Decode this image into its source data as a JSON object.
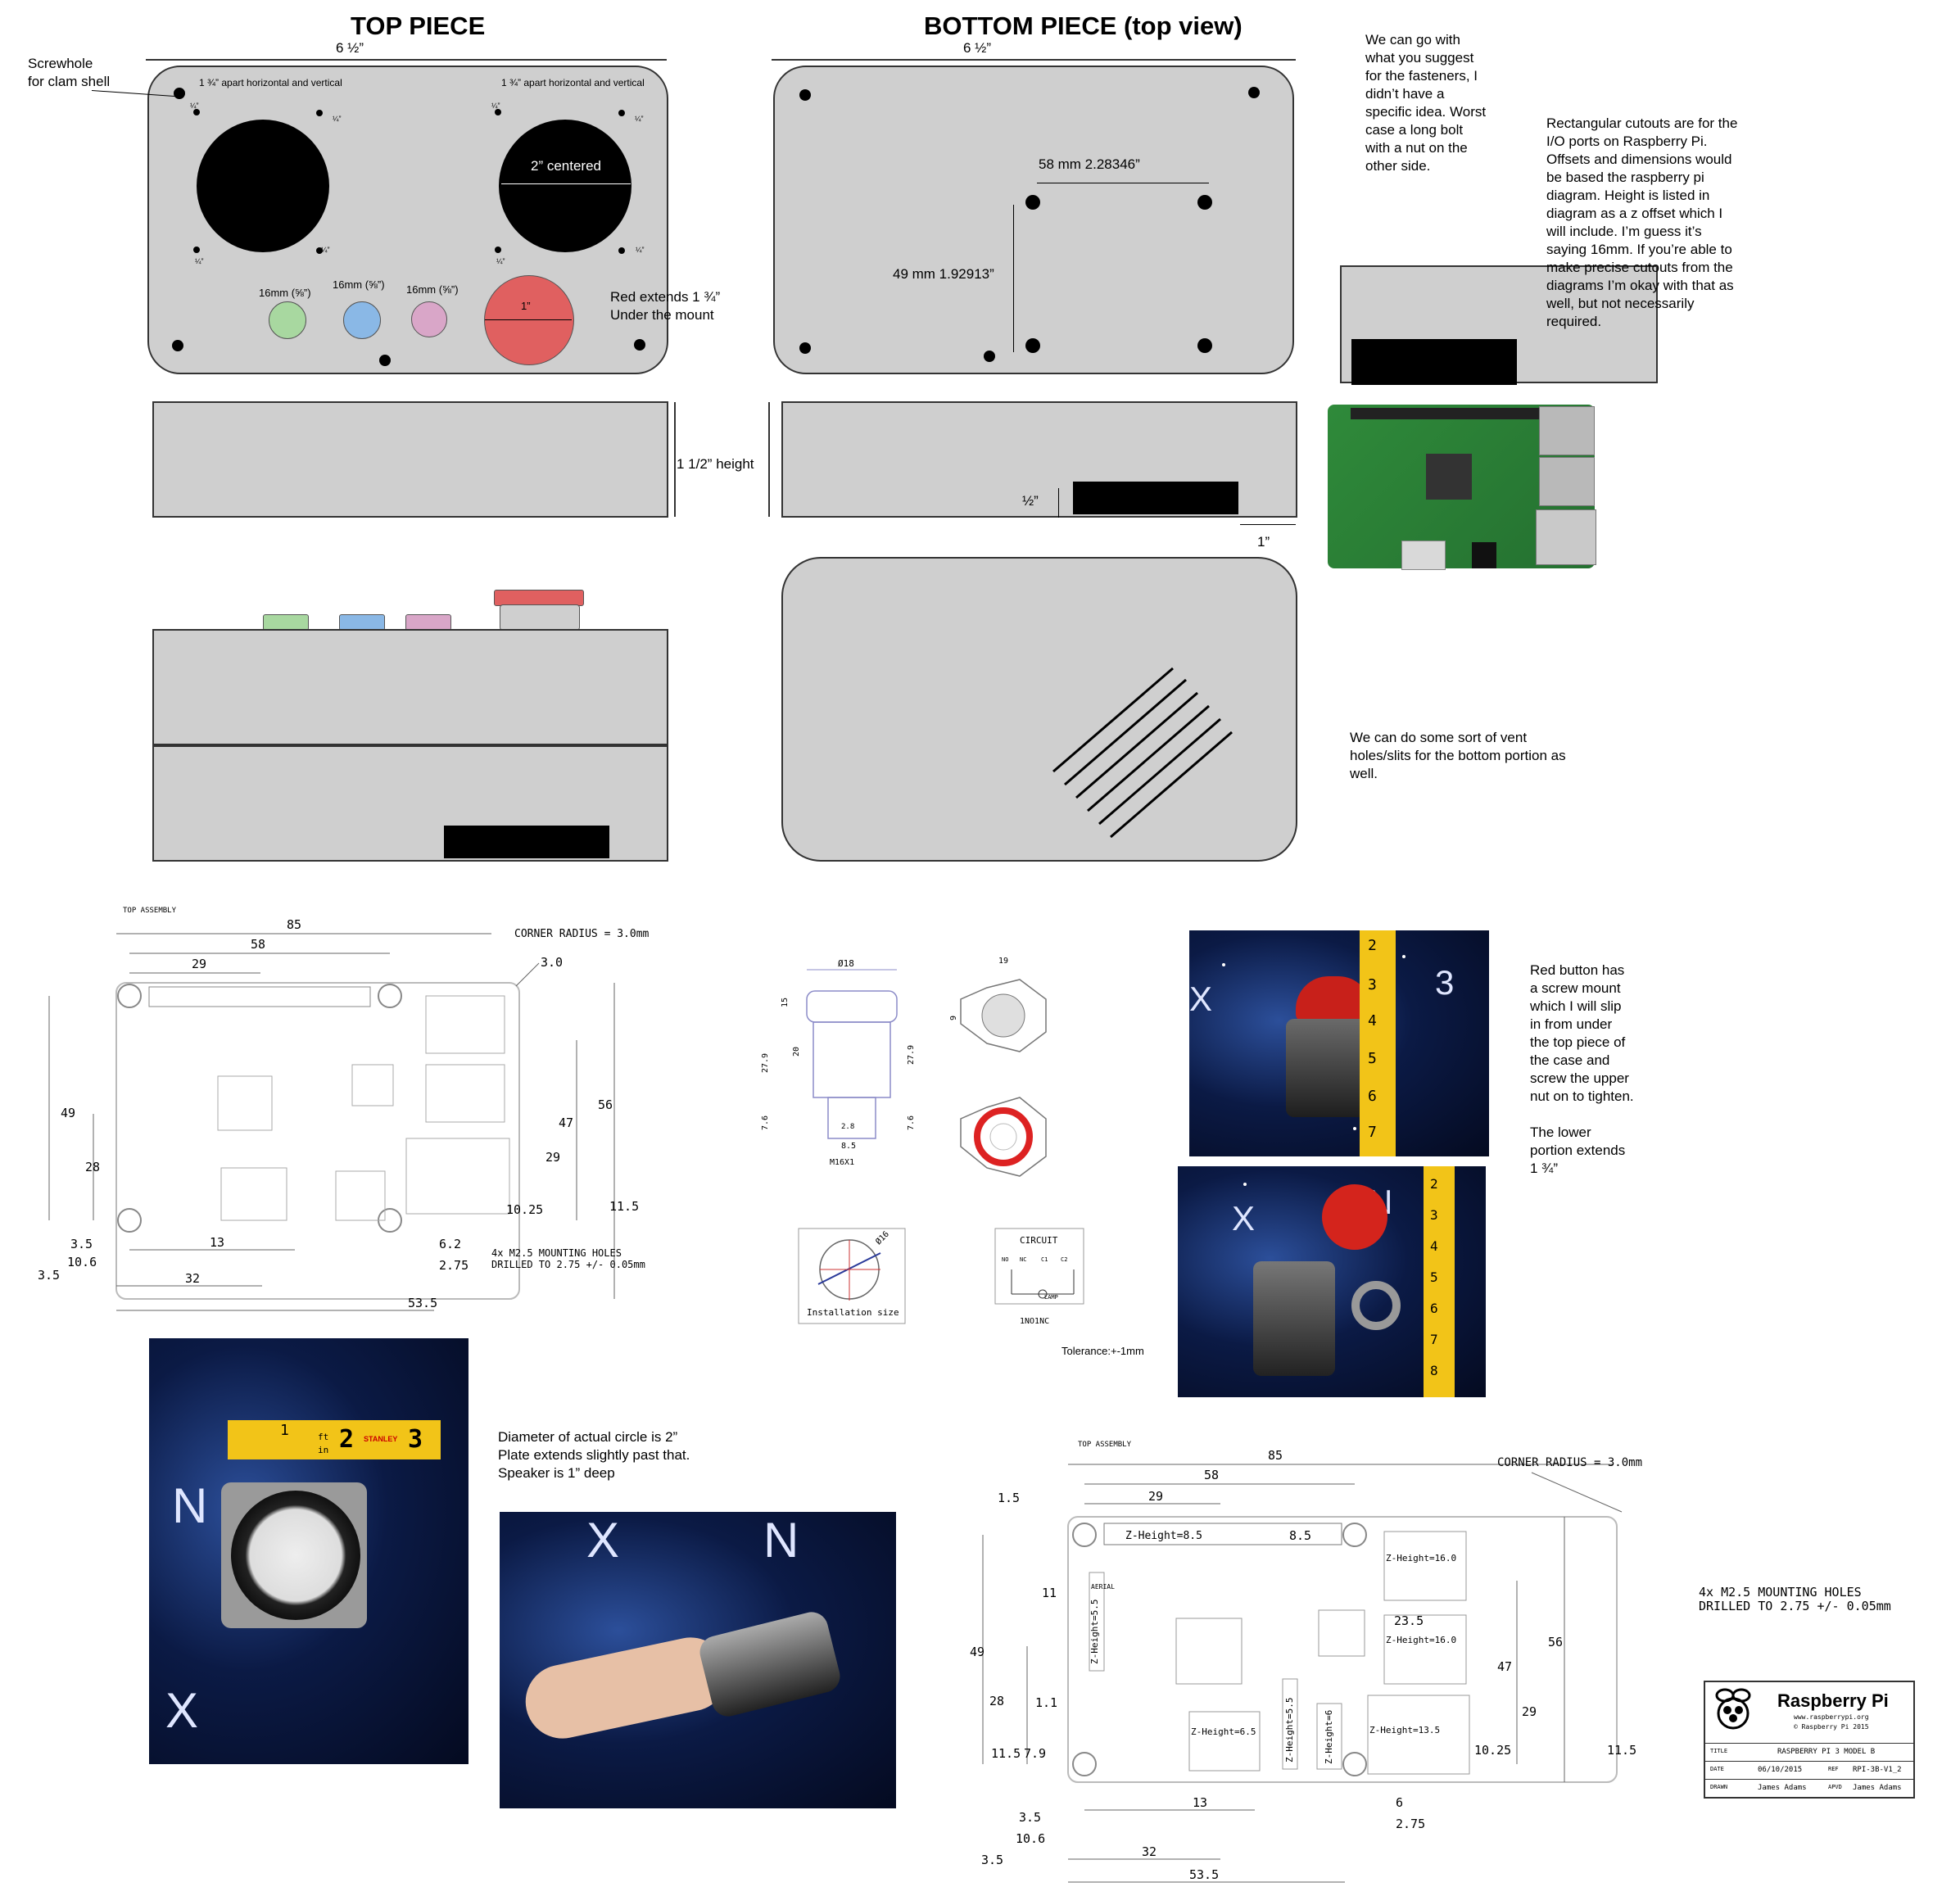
{
  "top_piece": {
    "title": "TOP PIECE",
    "width_label": "6 ½”",
    "screwhole_note": "Screwhole\nfor clam shell",
    "spacing_note": "1 ¾” apart horizontal and vertical",
    "quarter_label": "¼”",
    "speaker_label": "2” centered",
    "button_label": "16mm (⅝”)",
    "red_button_label": "1”",
    "red_note": "Red extends 1 ¾”\nUnder the mount",
    "height_label": "1 1/2” height"
  },
  "bottom_piece": {
    "title": "BOTTOM PIECE (top view)",
    "width_label": "6 ½”",
    "horizontal_label": "58 mm 2.28346”",
    "vertical_label": "49 mm 1.92913”",
    "half_label": "½”",
    "one_label": "1”"
  },
  "notes": {
    "fasteners": "We can go with\nwhat you suggest\nfor the fasteners, I\ndidn’t have a\nspecific idea. Worst\ncase a long bolt\nwith a nut on the\nother side.",
    "cutouts": "Rectangular cutouts are for the\nI/O ports on Raspberry Pi.\nOffsets and dimensions would\nbe based the raspberry pi\ndiagram. Height is listed in\ndiagram as a z offset which I\nwill include. I’m guess it’s\nsaying 16mm. If you’re able to\nmake precise cutouts from the\ndiagrams I’m okay with that as\nwell, but not necessarily\nrequired.",
    "vents": "We can do some sort of vent\nholes/slits for the bottom portion as\nwell.",
    "red_button": "Red button has\na screw mount\nwhich I will slip\nin from under\nthe top piece of\nthe case and\nscrew the upper\nnut on to tighten.\n\nThe lower\nportion extends\n1 ¾”",
    "speaker": "Diameter of actual circle is 2”\nPlate extends slightly past that.\nSpeaker is 1” deep",
    "tolerance": "Tolerance:+-1mm"
  },
  "pi_drawing_small": {
    "assembly": "TOP ASSEMBLY",
    "corner_radius": "CORNER RADIUS = 3.0mm",
    "r": "3.0",
    "d85": "85",
    "d58": "58",
    "d29": "29",
    "d49": "49",
    "d28": "28",
    "d47": "47",
    "d56": "56",
    "d29b": "29",
    "d10_25": "10.25",
    "d11_5": "11.5",
    "d13": "13",
    "d6_2": "6.2",
    "d2_75": "2.75",
    "d3_5": "3.5",
    "d10_6": "10.6",
    "d3_5b": "3.5",
    "d32": "32",
    "d53_5": "53.5",
    "mounting": "4x M2.5 MOUNTING HOLES\nDRILLED TO 2.75 +/- 0.05mm"
  },
  "button_drawing": {
    "d18": "Ø18",
    "d19": "19",
    "d15": "15",
    "d20": "20",
    "d27": "27.9",
    "d279": "27.9",
    "d76": "7.6",
    "d76b": "7.6",
    "d8": "8.5",
    "d28b": "2.8",
    "m16": "M16X1",
    "nine": "9",
    "install": "Installation size",
    "d16": "Ø16",
    "circuit": "CIRCUIT",
    "nonc": "1NO1NC",
    "p_no": "NO",
    "p_nc": "NC",
    "p_c1": "C1",
    "p_c2": "C2",
    "lamp": "LAMP"
  },
  "pi_drawing_large": {
    "assembly": "TOP ASSEMBLY",
    "corner_radius": "CORNER RADIUS = 3.0mm",
    "d85": "85",
    "d58": "58",
    "d29": "29",
    "d1_5": "1.5",
    "d8_5": "8.5",
    "d11": "11",
    "aerial": "AERIAL",
    "z85": "Z-Height=8.5",
    "z16a": "Z-Height=16.0",
    "z16b": "Z-Height=16.0",
    "z55": "Z-Height=5.5",
    "z65": "Z-Height=6.5",
    "z135": "Z-Height=13.5",
    "z55b": "Z-Height=5.5",
    "z6": "Z-Height=6",
    "d23_5": "23.5",
    "d49": "49",
    "d28": "28",
    "d1_1": "1.1",
    "d47": "47",
    "d56": "56",
    "d29b": "29",
    "d10_25": "10.25",
    "d11_5": "11.5",
    "d11_5b": "11.5",
    "d7_9": "7.9",
    "d13": "13",
    "d6": "6",
    "d2_75": "2.75",
    "d3_5": "3.5",
    "d10_6": "10.6",
    "d3_5b": "3.5",
    "d32": "32",
    "d53_5": "53.5",
    "mounting": "4x M2.5 MOUNTING HOLES\nDRILLED TO 2.75 +/- 0.05mm"
  },
  "title_block": {
    "brand": "Raspberry Pi",
    "url": "www.raspberrypi.org",
    "copyright": "© Raspberry Pi 2015",
    "title_label": "TITLE",
    "title_value": "RASPBERRY PI 3 MODEL B",
    "date_label": "DATE",
    "date_value": "06/10/2015",
    "ref_label": "REF",
    "ref_value": "RPI-3B-V1_2",
    "drawn_label": "DRAWN",
    "drawn_value": "James Adams",
    "apvd_label": "APVD",
    "apvd_value": "James Adams"
  },
  "photos": {
    "ruler_digits": [
      "2",
      "3",
      "4",
      "5",
      "6",
      "7"
    ],
    "ruler_digits_b": [
      "2",
      "3",
      "4",
      "5",
      "6",
      "7",
      "8"
    ],
    "tape_marks": [
      "1",
      "2",
      "3"
    ],
    "tape_units": [
      "ft",
      "in"
    ],
    "tape_brand": "STANLEY",
    "star_letters": [
      "X",
      "3",
      "X",
      "N",
      "X",
      "N",
      "X"
    ]
  },
  "colors": {
    "panel": "#cfcfcf",
    "green_button": "#a8d8a0",
    "blue_button": "#8ab8e6",
    "pink_button": "#d9a6c8",
    "red_button": "#e06060",
    "pcb_green": "#2f8a3a"
  }
}
